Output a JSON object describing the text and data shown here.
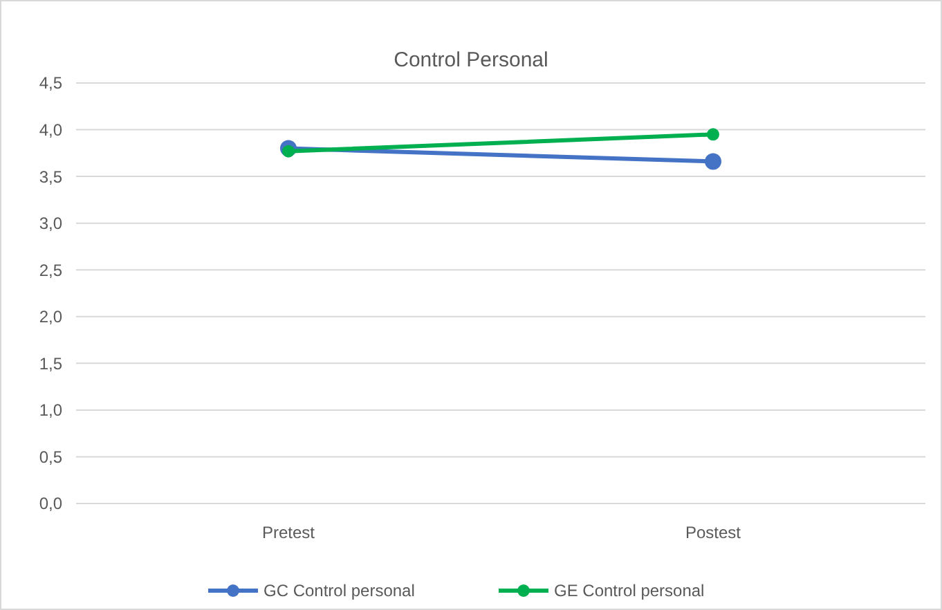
{
  "chart_data": {
    "type": "line",
    "title": "Control Personal",
    "categories": [
      "Pretest",
      "Postest"
    ],
    "series": [
      {
        "name": "GC Control personal",
        "color": "#4472c4",
        "values": [
          3.8,
          3.66
        ]
      },
      {
        "name": "GE Control personal",
        "color": "#00b050",
        "values": [
          3.77,
          3.95
        ]
      }
    ],
    "ylim": [
      0,
      4.5
    ],
    "yticks": [
      {
        "value": 0,
        "label": "0,0"
      },
      {
        "value": 0.5,
        "label": "0,5"
      },
      {
        "value": 1,
        "label": "1,0"
      },
      {
        "value": 1.5,
        "label": "1,5"
      },
      {
        "value": 2,
        "label": "2,0"
      },
      {
        "value": 2.5,
        "label": "2,5"
      },
      {
        "value": 3,
        "label": "3,0"
      },
      {
        "value": 3.5,
        "label": "3,5"
      },
      {
        "value": 4,
        "label": "4,0"
      },
      {
        "value": 4.5,
        "label": "4,5"
      }
    ],
    "grid": "y",
    "legend": "bottom",
    "marker": "circle",
    "line_style": "solid"
  }
}
